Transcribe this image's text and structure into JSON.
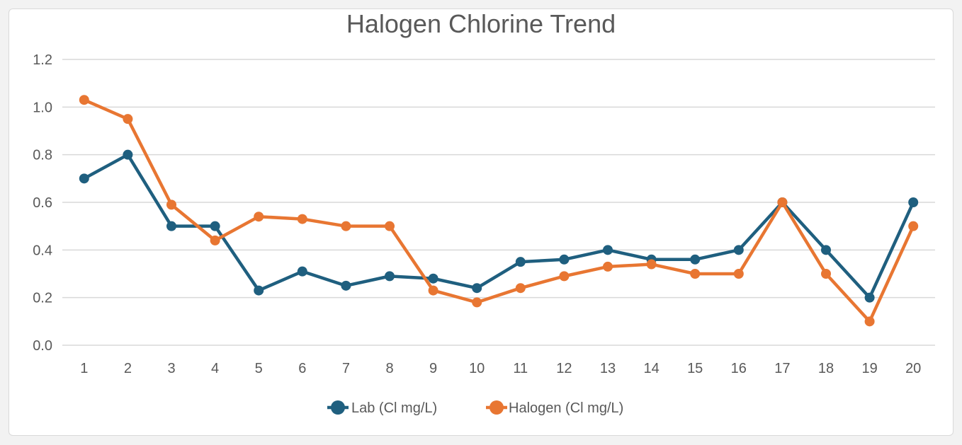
{
  "chart_data": {
    "type": "line",
    "title": "Halogen Chlorine Trend",
    "xlabel": "",
    "ylabel": "",
    "categories": [
      "1",
      "2",
      "3",
      "4",
      "5",
      "6",
      "7",
      "8",
      "9",
      "10",
      "11",
      "12",
      "13",
      "14",
      "15",
      "16",
      "17",
      "18",
      "19",
      "20"
    ],
    "y_ticks": [
      "0.0",
      "0.2",
      "0.4",
      "0.6",
      "0.8",
      "1.0",
      "1.2"
    ],
    "ylim": [
      0,
      1.2
    ],
    "grid": true,
    "legend_position": "bottom",
    "series": [
      {
        "name": "Lab (Cl mg/L)",
        "color": "#1f5f7f",
        "values": [
          0.7,
          0.8,
          0.5,
          0.5,
          0.23,
          0.31,
          0.25,
          0.29,
          0.28,
          0.24,
          0.35,
          0.36,
          0.4,
          0.36,
          0.36,
          0.4,
          0.6,
          0.4,
          0.2,
          0.6
        ]
      },
      {
        "name": "Halogen (Cl mg/L)",
        "color": "#e87632",
        "values": [
          1.03,
          0.95,
          0.59,
          0.44,
          0.54,
          0.53,
          0.5,
          0.5,
          0.23,
          0.18,
          0.24,
          0.29,
          0.33,
          0.34,
          0.3,
          0.3,
          0.6,
          0.3,
          0.1,
          0.5
        ]
      }
    ]
  }
}
